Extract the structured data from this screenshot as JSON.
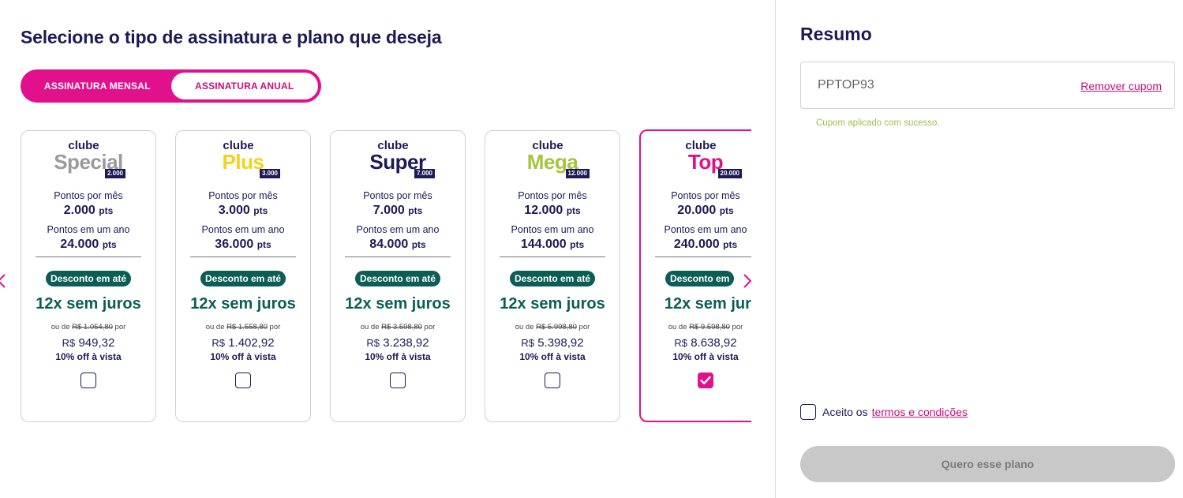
{
  "main": {
    "title": "Selecione o tipo de assinatura e plano que deseja",
    "toggle": {
      "mensal": "ASSINATURA MENSAL",
      "anual": "ASSINATURA ANUAL"
    }
  },
  "labels": {
    "points_month": "Pontos por mês",
    "points_year": "Pontos em um ano",
    "pts": "pts",
    "discount": "Desconto em até",
    "discount_cut": "Desconto em",
    "installments": "12x sem juros",
    "installments_cut": "12x sem juro",
    "ou": "ou de",
    "por": "por",
    "currency": "R$",
    "off": "10% off à vista",
    "clube": "clube"
  },
  "plans": [
    {
      "name": "Special",
      "color": "#9a9a9a",
      "badge": "2.000",
      "month": "2.000",
      "year": "24.000",
      "old": "R$ 1.054,80",
      "price": "949,32",
      "selected": false
    },
    {
      "name": "Plus",
      "color": "#f2d21b",
      "badge": "3.000",
      "month": "3.000",
      "year": "36.000",
      "old": "R$ 1.558,80",
      "price": "1.402,92",
      "selected": false
    },
    {
      "name": "Super",
      "color": "#1d1a57",
      "badge": "7.000",
      "month": "7.000",
      "year": "84.000",
      "old": "R$ 3.598,80",
      "price": "3.238,92",
      "selected": false
    },
    {
      "name": "Mega",
      "color": "#a7c33b",
      "badge": "12.000",
      "month": "12.000",
      "year": "144.000",
      "old": "R$ 5.998,80",
      "price": "5.398,92",
      "selected": false
    },
    {
      "name": "Top",
      "color": "#e0118a",
      "badge": "20.000",
      "month": "20.000",
      "year": "240.000",
      "old": "R$ 9.598,80",
      "price": "8.638,92",
      "selected": true
    }
  ],
  "sidebar": {
    "title": "Resumo",
    "coupon_code": "PPTOP93",
    "remove_coupon": "Remover cupom",
    "coupon_success": "Cupom aplicado com sucesso.",
    "terms_prefix": "Aceito os",
    "terms_link": "termos e condições",
    "cta": "Quero esse plano"
  },
  "colors": {
    "accent": "#e0118a",
    "navy": "#1d1a57",
    "green": "#0b5d55"
  }
}
